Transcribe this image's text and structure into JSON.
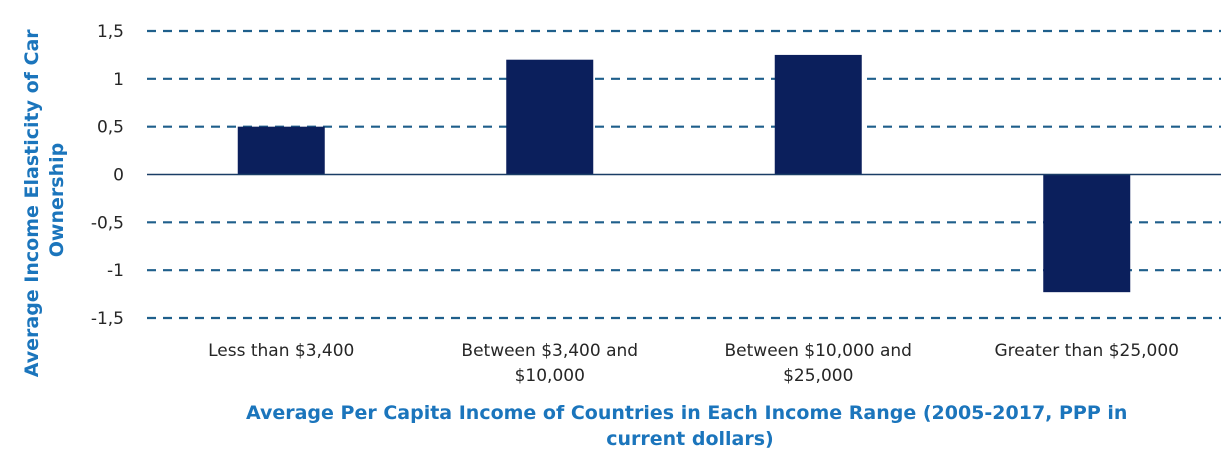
{
  "colors": {
    "bar": "#0b1f5c",
    "grid": "#1f5f8b",
    "axis_title": "#1b75bc",
    "text": "#262626"
  },
  "chart_data": {
    "type": "bar",
    "categories": [
      "Less than $3,400",
      "Between $3,400 and $10,000",
      "Between $10,000 and $25,000",
      "Greater than $25,000"
    ],
    "category_label_lines": [
      [
        "Less than $3,400"
      ],
      [
        "Between $3,400 and",
        "$10,000"
      ],
      [
        "Between $10,000 and",
        "$25,000"
      ],
      [
        "Greater than $25,000"
      ]
    ],
    "values": [
      0.5,
      1.2,
      1.25,
      -1.23
    ],
    "ylim": [
      -1.5,
      1.5
    ],
    "yticks": [
      1.5,
      1,
      0.5,
      0,
      -0.5,
      -1,
      -1.5
    ],
    "ytick_labels": [
      "1,5",
      "1",
      "0,5",
      "0",
      "-0,5",
      "-1",
      "-1,5"
    ],
    "grid": true,
    "grid_style": "dashed",
    "title": "",
    "xlabel": "Average Per Capita Income of Countries in Each Income Range (2005-2017, PPP in current dollars)",
    "xlabel_lines": [
      "Average Per Capita Income of Countries in Each Income Range (2005-2017, PPP in",
      "current dollars)"
    ],
    "ylabel": "Average Income Elasticity of Car Ownership",
    "ylabel_lines": [
      "Average Income Elasticity of Car",
      "Ownership"
    ]
  }
}
